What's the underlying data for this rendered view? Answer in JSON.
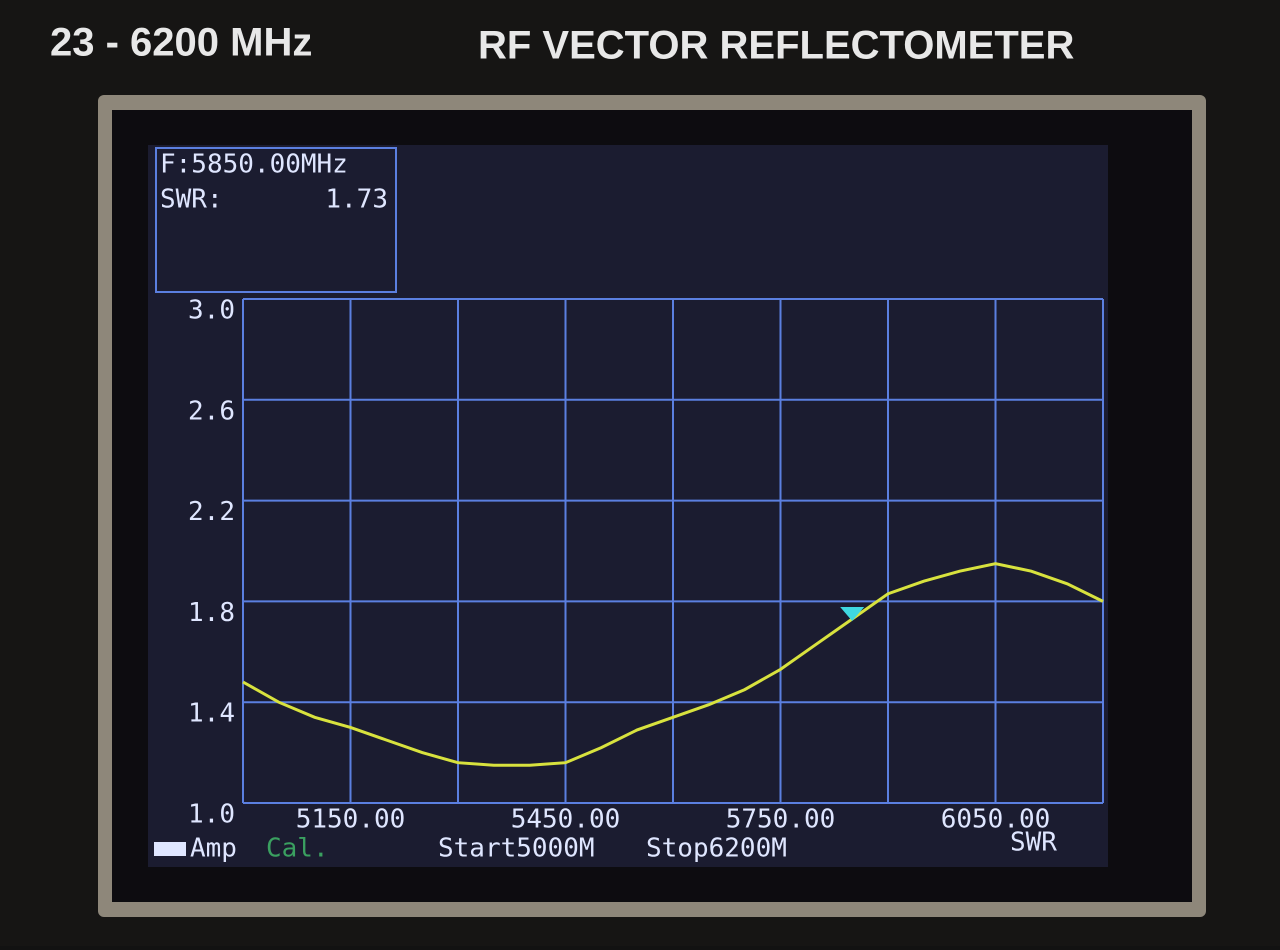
{
  "device": {
    "range": "23 - 6200 MHz",
    "name": "RF VECTOR REFLECTOMETER"
  },
  "marker": {
    "frequency": "F:5850.00MHz",
    "quantity": "SWR:",
    "reading": "1.73"
  },
  "status": {
    "mode": "Amp",
    "cal": "Cal.",
    "start": "Start5000M",
    "stop": "Stop6200M",
    "measure": "SWR"
  },
  "chart_data": {
    "type": "line",
    "x": [
      5000,
      5050,
      5100,
      5150,
      5200,
      5250,
      5300,
      5350,
      5400,
      5450,
      5500,
      5550,
      5600,
      5650,
      5700,
      5750,
      5800,
      5850,
      5900,
      5950,
      6000,
      6050,
      6100,
      6150,
      6200
    ],
    "series": [
      {
        "name": "SWR",
        "color": "#d8e23e",
        "values": [
          1.48,
          1.4,
          1.34,
          1.3,
          1.25,
          1.2,
          1.16,
          1.15,
          1.15,
          1.16,
          1.22,
          1.29,
          1.34,
          1.39,
          1.45,
          1.53,
          1.63,
          1.73,
          1.83,
          1.88,
          1.92,
          1.95,
          1.92,
          1.87,
          1.8
        ]
      }
    ],
    "xlim": [
      5000,
      6200
    ],
    "xticks": [
      {
        "value": 5150,
        "label": "5150.00"
      },
      {
        "value": 5450,
        "label": "5450.00"
      },
      {
        "value": 5750,
        "label": "5750.00"
      },
      {
        "value": 6050,
        "label": "6050.00"
      }
    ],
    "ylim": [
      1,
      3
    ],
    "yticks": [
      {
        "value": 1,
        "label": "1.0"
      },
      1.4,
      1.8,
      2.2,
      2.6,
      {
        "value": 3,
        "label": "3.0"
      }
    ],
    "grid": true,
    "grid_color": "#5b7fe0"
  }
}
